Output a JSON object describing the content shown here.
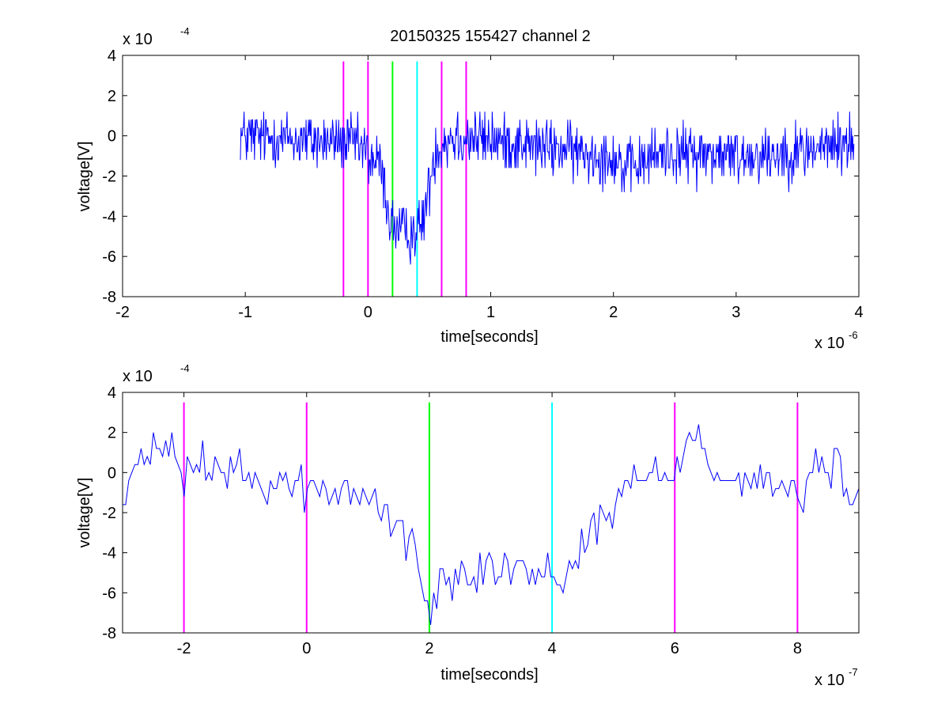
{
  "chart_data": [
    {
      "type": "line",
      "title": "20150325 155427 channel 2",
      "xlabel": "time[seconds]",
      "ylabel": "voltage[V]",
      "x_exponent_label": "x 10",
      "x_exponent": "-6",
      "y_exponent_label": "x 10",
      "y_exponent": "-4",
      "xlim": [
        -2,
        4
      ],
      "ylim": [
        -8,
        4
      ],
      "xticks": [
        "-2",
        "-1",
        "0",
        "1",
        "2",
        "3",
        "4"
      ],
      "yticks": [
        "4",
        "2",
        "0",
        "-2",
        "-4",
        "-6",
        "-8"
      ],
      "grid": false,
      "series": [
        {
          "color": "#0000ff",
          "x_range": [
            -1.04,
            3.96
          ],
          "points": 1000,
          "trend": [
            [
              -1.04,
              0
            ],
            [
              -0.1,
              -0.4
            ],
            [
              0.1,
              -1.5
            ],
            [
              0.18,
              -4.3
            ],
            [
              0.3,
              -4.9
            ],
            [
              0.43,
              -4.6
            ],
            [
              0.5,
              -2.5
            ],
            [
              0.55,
              -0.6
            ],
            [
              0.7,
              0
            ],
            [
              1.2,
              -0.4
            ],
            [
              2.0,
              -1.0
            ],
            [
              2.1,
              -1.8
            ],
            [
              2.4,
              -0.8
            ],
            [
              3.0,
              -1.0
            ],
            [
              3.5,
              -0.8
            ],
            [
              3.96,
              -0.3
            ]
          ],
          "noise": 0.9
        }
      ],
      "markers": [
        {
          "x": -0.2,
          "color": "#ff00ff"
        },
        {
          "x": 0.0,
          "color": "#ff00ff"
        },
        {
          "x": 0.2,
          "color": "#00ff00"
        },
        {
          "x": 0.4,
          "color": "#00ffff"
        },
        {
          "x": 0.6,
          "color": "#ff00ff"
        },
        {
          "x": 0.8,
          "color": "#ff00ff"
        }
      ],
      "marker_range": [
        -8,
        3.7
      ]
    },
    {
      "type": "line",
      "xlabel": "time[seconds]",
      "ylabel": "voltage[V]",
      "x_exponent_label": "x 10",
      "x_exponent": "-7",
      "y_exponent_label": "x 10",
      "y_exponent": "-4",
      "xlim": [
        -3,
        9
      ],
      "ylim": [
        -8,
        4
      ],
      "xticks": [
        "-2",
        "0",
        "2",
        "4",
        "6",
        "8"
      ],
      "xtick_values": [
        -2,
        0,
        2,
        4,
        6,
        8
      ],
      "yticks": [
        "4",
        "2",
        "0",
        "-2",
        "-4",
        "-6",
        "-8"
      ],
      "grid": false,
      "series": [
        {
          "color": "#0000ff",
          "x_range": [
            -3,
            9
          ],
          "points": 240,
          "trend": [
            [
              -3,
              -1.6
            ],
            [
              -2.8,
              0
            ],
            [
              -2.3,
              1.5
            ],
            [
              -2.0,
              -0.3
            ],
            [
              -1.6,
              0.5
            ],
            [
              -1,
              -0.3
            ],
            [
              -0.5,
              -0.5
            ],
            [
              0,
              -0.6
            ],
            [
              0.5,
              -1.2
            ],
            [
              1.0,
              -1.1
            ],
            [
              1.5,
              -2.5
            ],
            [
              1.8,
              -4.7
            ],
            [
              2.0,
              -7.2
            ],
            [
              2.2,
              -5.0
            ],
            [
              2.7,
              -4.6
            ],
            [
              3.2,
              -4.8
            ],
            [
              3.8,
              -5.0
            ],
            [
              4.2,
              -5.2
            ],
            [
              4.6,
              -3.0
            ],
            [
              5.0,
              -1.6
            ],
            [
              5.5,
              -0.2
            ],
            [
              6.0,
              0.2
            ],
            [
              6.3,
              2.2
            ],
            [
              6.8,
              -0.2
            ],
            [
              7.5,
              -0.5
            ],
            [
              8.0,
              -1.2
            ],
            [
              8.5,
              0.5
            ],
            [
              9.0,
              -1.5
            ]
          ],
          "noise": 0.7
        }
      ],
      "markers": [
        {
          "x": -2,
          "color": "#ff00ff"
        },
        {
          "x": 0,
          "color": "#ff00ff"
        },
        {
          "x": 2,
          "color": "#00ff00"
        },
        {
          "x": 4,
          "color": "#00ffff"
        },
        {
          "x": 6,
          "color": "#ff00ff"
        },
        {
          "x": 8,
          "color": "#ff00ff"
        }
      ],
      "marker_range": [
        -8,
        3.5
      ]
    }
  ]
}
